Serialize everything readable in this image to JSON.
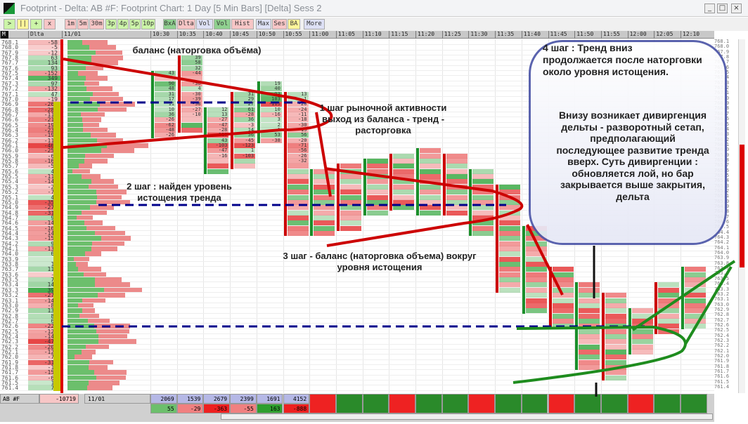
{
  "window": {
    "title": "Footprint - Delta: AB #F: Footprint Chart: 1 Day [5 Min Bars] [Delta] Sess 2",
    "min": "_",
    "max": "□",
    "close": "×"
  },
  "toolbar": [
    {
      "label": ">",
      "bg": "#ccf5a8"
    },
    {
      "label": "||",
      "bg": "#fff59a"
    },
    {
      "label": "+",
      "bg": "#ccf5a8"
    },
    {
      "label": "x",
      "bg": "#f7c6c6"
    },
    {
      "label": "1m",
      "bg": "#f7c6c6"
    },
    {
      "label": "5m",
      "bg": "#f7c6c6"
    },
    {
      "label": "30m",
      "bg": "#f7c6c6"
    },
    {
      "label": "3p",
      "bg": "#ccf5a8"
    },
    {
      "label": "4p",
      "bg": "#ccf5a8"
    },
    {
      "label": "5p",
      "bg": "#ccf5a8"
    },
    {
      "label": "10p",
      "bg": "#ccf5a8"
    },
    {
      "label": "BxA",
      "bg": "#8fd08f"
    },
    {
      "label": "Dlta",
      "bg": "#f7c6c6"
    },
    {
      "label": "Vol",
      "bg": "#dde0f5"
    },
    {
      "label": "Vol",
      "bg": "#8fd08f"
    },
    {
      "label": "Hist",
      "bg": "#f7c6c6"
    },
    {
      "label": "Max",
      "bg": "#dde0f5"
    },
    {
      "label": "Ses",
      "bg": "#f7c6c6"
    },
    {
      "label": "BA",
      "bg": "#fff59a"
    },
    {
      "label": "More",
      "bg": "#dde0f5"
    }
  ],
  "header": {
    "m": "M",
    "delta": "Dlta",
    "date": "11/01",
    "times": [
      "10:30",
      "10:35",
      "10:40",
      "10:45",
      "10:50",
      "10:55",
      "11:00",
      "11:05",
      "11:10",
      "11:15",
      "11:20",
      "11:25",
      "11:30",
      "11:35",
      "11:40",
      "11:45",
      "11:50",
      "11:55",
      "12:00",
      "12:05",
      "12:10"
    ]
  },
  "ladder": [
    [
      "768.1",
      -58
    ],
    [
      "768.0",
      -5
    ],
    [
      "767.9",
      -12
    ],
    [
      "767.8",
      63
    ],
    [
      "767.7",
      134
    ],
    [
      "767.6",
      93
    ],
    [
      "767.5",
      -152
    ],
    [
      "767.4",
      349
    ],
    [
      "767.3",
      97
    ],
    [
      "767.2",
      -132
    ],
    [
      "767.1",
      47
    ],
    [
      "767.0",
      -19
    ],
    [
      "766.9",
      -267
    ],
    [
      "766.8",
      -288
    ],
    [
      "766.7",
      -113
    ],
    [
      "766.6",
      -215
    ],
    [
      "766.5",
      -198
    ],
    [
      "766.4",
      -237
    ],
    [
      "766.3",
      -193
    ],
    [
      "766.2",
      -112
    ],
    [
      "766.1",
      -467
    ],
    [
      "766.0",
      -256
    ],
    [
      "765.9",
      -66
    ],
    [
      "765.8",
      -169
    ],
    [
      "765.7",
      -59
    ],
    [
      "765.6",
      43
    ],
    [
      "765.5",
      -118
    ],
    [
      "765.4",
      -141
    ],
    [
      "765.3",
      -24
    ],
    [
      "765.2",
      -76
    ],
    [
      "765.1",
      47
    ],
    [
      "765.0",
      -357
    ],
    [
      "764.9",
      -276
    ],
    [
      "764.8",
      -310
    ],
    [
      "764.7",
      95
    ],
    [
      "764.6",
      -146
    ],
    [
      "764.5",
      -162
    ],
    [
      "764.4",
      -143
    ],
    [
      "764.3",
      -156
    ],
    [
      "764.2",
      90
    ],
    [
      "764.1",
      -138
    ],
    [
      "764.0",
      69
    ],
    [
      "763.9",
      8
    ],
    [
      "763.8",
      10
    ],
    [
      "763.7",
      118
    ],
    [
      "763.6",
      -7
    ],
    [
      "763.5",
      78
    ],
    [
      "763.4",
      140
    ],
    [
      "763.3",
      399
    ],
    [
      "763.2",
      -276
    ],
    [
      "763.1",
      -145
    ],
    [
      "763.0",
      -87
    ],
    [
      "762.9",
      130
    ],
    [
      "762.8",
      82
    ],
    [
      "762.7",
      63
    ],
    [
      "762.6",
      -221
    ],
    [
      "762.5",
      -126
    ],
    [
      "762.4",
      -145
    ],
    [
      "762.3",
      -471
    ],
    [
      "762.2",
      -208
    ],
    [
      "762.1",
      -124
    ],
    [
      "762.0",
      -74
    ],
    [
      "761.9",
      -310
    ],
    [
      "761.8",
      -16
    ],
    [
      "761.7",
      -158
    ],
    [
      "761.6",
      -63
    ],
    [
      "761.5",
      19
    ],
    [
      "761.4",
      73
    ]
  ],
  "bars": [
    {
      "time": "10:30",
      "high": "767.5",
      "low": "766.3",
      "cells": [
        43,
        null,
        90,
        48,
        31,
        17,
        11,
        10,
        36,
        -26,
        -62,
        -48,
        -26
      ]
    },
    {
      "time": "10:35",
      "high": "767.8",
      "low": "766.4",
      "cells": [
        39,
        58,
        32,
        -44,
        null,
        -38,
        4,
        -30,
        -39,
        -38,
        -27,
        -10
      ]
    },
    {
      "time": "10:40",
      "high": "766.8",
      "low": "765.6",
      "cells": [
        12,
        13,
        -27,
        -47,
        -28,
        -118,
        43,
        -103,
        -47,
        -16
      ]
    },
    {
      "time": "10:45",
      "high": "767.1",
      "low": "765.7",
      "cells": [
        31,
        29,
        27,
        61,
        -28,
        36,
        -3,
        14,
        56,
        -45,
        -123,
        1,
        -103
      ]
    },
    {
      "time": "10:50",
      "high": "767.3",
      "low": "766.2",
      "cells": [
        19,
        40,
        93,
        103,
        -115,
        10,
        -16,
        3,
        2,
        1,
        53,
        -38,
        -25
      ]
    },
    {
      "time": "10:55",
      "high": "767.1",
      "low": "764.4",
      "cells": [
        13,
        1,
        -20,
        -24,
        -11,
        -18,
        -30,
        -13,
        56,
        -20,
        -71,
        -56,
        -26,
        -32
      ]
    },
    {
      "time": "11:00",
      "high": "765.6",
      "low": "764.4"
    },
    {
      "time": "11:05",
      "high": "765.7",
      "low": "764.5"
    },
    {
      "time": "11:10",
      "high": "765.8",
      "low": "764.8"
    },
    {
      "time": "11:15",
      "high": "765.9",
      "low": "764.9"
    },
    {
      "time": "11:20",
      "high": "766.0",
      "low": "764.8"
    },
    {
      "time": "11:25",
      "high": "765.9",
      "low": "764.8"
    },
    {
      "time": "11:30",
      "high": "765.6",
      "low": "764.4"
    },
    {
      "time": "11:35",
      "high": "765.3",
      "low": "763.3"
    },
    {
      "time": "11:40",
      "high": "764.5",
      "low": "762.9"
    },
    {
      "time": "11:45",
      "high": "763.7",
      "low": "762.6"
    },
    {
      "time": "11:50",
      "high": "763.4",
      "low": "761.8"
    },
    {
      "time": "11:55",
      "high": "763.2",
      "low": "761.6"
    },
    {
      "time": "12:00",
      "high": "762.9",
      "low": "762.1"
    },
    {
      "time": "12:05",
      "high": "763.4",
      "low": "762.5"
    },
    {
      "time": "12:10",
      "high": "763.7",
      "low": "762.6"
    }
  ],
  "footer": {
    "symbol": "AB #F",
    "total_delta": "-10719",
    "date": "11/01",
    "volumes": [
      "2069",
      "1539",
      "2679",
      "2399",
      "1691",
      "4152"
    ],
    "deltas": [
      "55",
      "-29",
      "-363",
      "-55",
      "163",
      "-888"
    ]
  },
  "annotations": {
    "balance": "баланс (наторговка объёма)",
    "step1": "1 шаг рыночной активности выход из баланса - тренд - расторговка",
    "step2": "2 шаг : найден уровень истощения тренда",
    "step3": "3 шаг - баланс (наторговка объема) вокруг уровня истощения",
    "step4a": "4 шаг : Тренд вниз продолжается после наторговки около уровня истощения.",
    "step4b": "Внизу возникает дивиргенция дельты - разворотный сетап, предполагающий последующее развитие тренда вверх. Суть дивиргенции : обновляется лой, но бар закрывается выше закрытия, дельта"
  },
  "colors": {
    "green": "#5cb85c",
    "red": "#e85050",
    "trend_line": "#cc0000",
    "level_line": "#00008b",
    "reversal": "#1e8c1e",
    "bubble_border": "#4d56a8"
  }
}
